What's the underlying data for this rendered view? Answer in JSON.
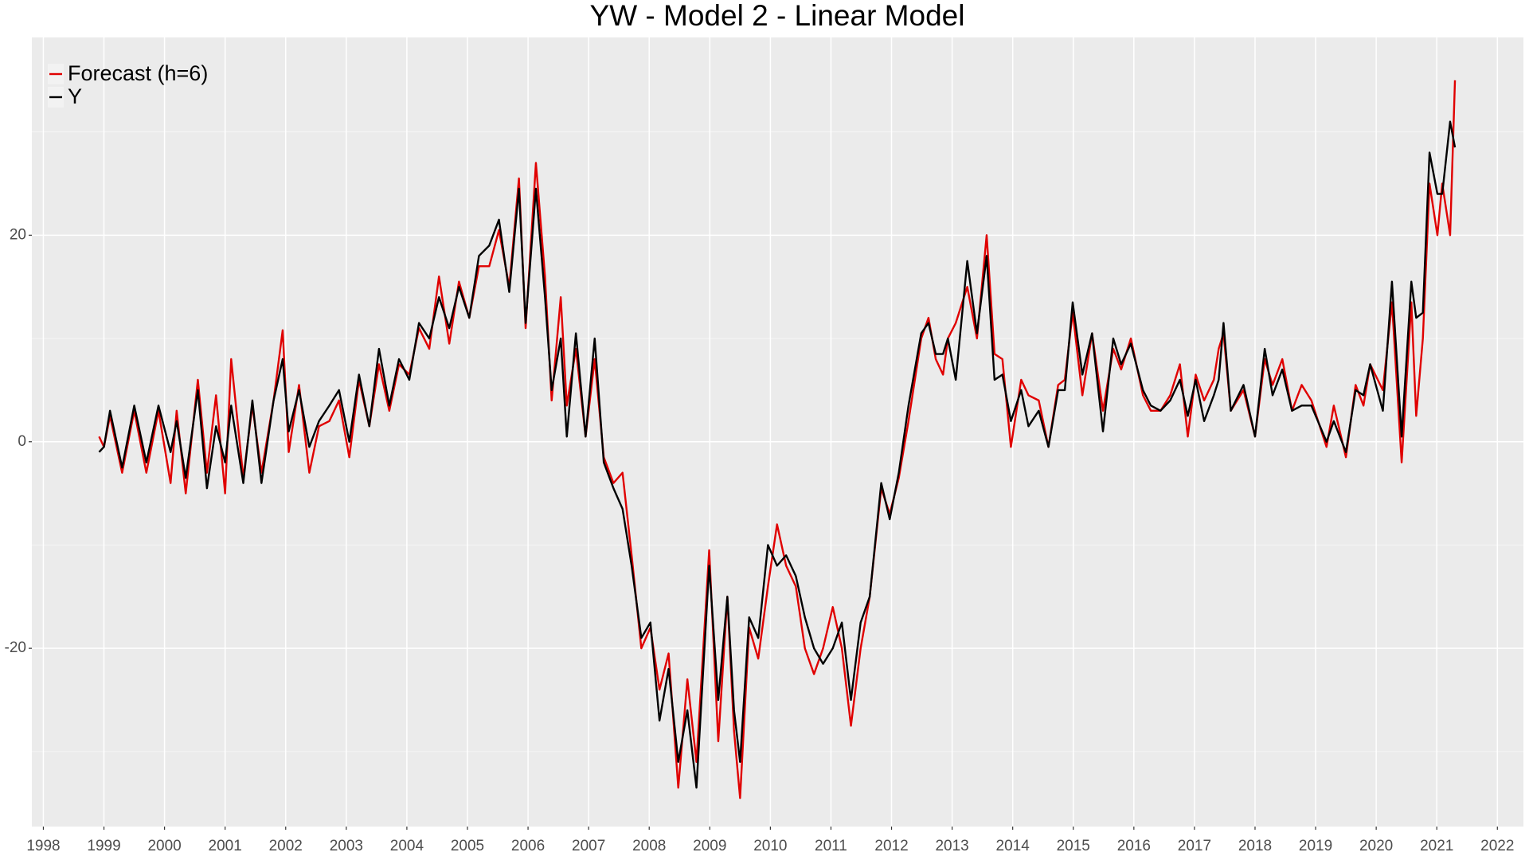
{
  "chart_data": {
    "type": "line",
    "title": "YW - Model 2 - Linear Model",
    "grid": true,
    "legend_position": "top-left",
    "xlim": [
      1997.81,
      2022.43
    ],
    "xticks": [
      1998,
      1999,
      2000,
      2001,
      2002,
      2003,
      2004,
      2005,
      2006,
      2007,
      2008,
      2009,
      2010,
      2011,
      2012,
      2013,
      2014,
      2015,
      2016,
      2017,
      2018,
      2019,
      2020,
      2021,
      2022
    ],
    "ylim": [
      -37.26,
      39.15
    ],
    "yticks": [
      -20,
      0,
      20
    ],
    "yminor": [
      -30,
      -10,
      10,
      30
    ],
    "x": [
      1998.92,
      1999.0,
      1999.1,
      1999.3,
      1999.5,
      1999.7,
      1999.9,
      2000.1,
      2000.2,
      2000.35,
      2000.55,
      2000.7,
      2000.85,
      2001.0,
      2001.1,
      2001.3,
      2001.45,
      2001.6,
      2001.8,
      2001.95,
      2002.05,
      2002.22,
      2002.39,
      2002.55,
      2002.72,
      2002.88,
      2003.05,
      2003.21,
      2003.38,
      2003.54,
      2003.71,
      2003.87,
      2004.04,
      2004.2,
      2004.37,
      2004.53,
      2004.7,
      2004.86,
      2005.03,
      2005.19,
      2005.36,
      2005.52,
      2005.69,
      2005.85,
      2005.96,
      2006.13,
      2006.28,
      2006.39,
      2006.54,
      2006.64,
      2006.79,
      2006.95,
      2007.1,
      2007.25,
      2007.41,
      2007.56,
      2007.71,
      2007.87,
      2008.02,
      2008.17,
      2008.32,
      2008.48,
      2008.63,
      2008.78,
      2008.99,
      2009.14,
      2009.29,
      2009.4,
      2009.5,
      2009.65,
      2009.8,
      2009.96,
      2010.11,
      2010.26,
      2010.42,
      2010.57,
      2010.72,
      2010.87,
      2011.03,
      2011.18,
      2011.33,
      2011.49,
      2011.64,
      2011.83,
      2011.97,
      2012.12,
      2012.28,
      2012.49,
      2012.61,
      2012.73,
      2012.85,
      2012.93,
      2013.06,
      2013.25,
      2013.41,
      2013.57,
      2013.7,
      2013.83,
      2013.97,
      2014.14,
      2014.26,
      2014.43,
      2014.59,
      2014.75,
      2014.86,
      2014.99,
      2015.15,
      2015.31,
      2015.49,
      2015.66,
      2015.79,
      2015.95,
      2016.15,
      2016.28,
      2016.44,
      2016.6,
      2016.76,
      2016.89,
      2017.02,
      2017.16,
      2017.32,
      2017.4,
      2017.48,
      2017.6,
      2017.81,
      2018.0,
      2018.16,
      2018.29,
      2018.45,
      2018.61,
      2018.77,
      2018.93,
      2019.18,
      2019.3,
      2019.5,
      2019.66,
      2019.79,
      2019.9,
      2020.11,
      2020.26,
      2020.42,
      2020.58,
      2020.66,
      2020.77,
      2020.88,
      2021.01,
      2021.09,
      2021.22,
      2021.3
    ],
    "series": [
      {
        "name": "Forecast (h=6)",
        "color": "#e00000",
        "values": [
          0.5,
          -0.5,
          2.5,
          -3,
          3,
          -3,
          3,
          -4,
          3,
          -5,
          6,
          -3,
          4.5,
          -5,
          8,
          -3.5,
          3.5,
          -3,
          4,
          10.8,
          -1,
          5.5,
          -3,
          1.5,
          2,
          4,
          -1.5,
          6,
          1.5,
          7.5,
          3,
          7.5,
          6.5,
          11,
          9,
          16,
          9.5,
          15.5,
          12,
          17,
          17,
          20.5,
          15,
          25.5,
          11,
          27,
          16,
          4,
          14,
          3.5,
          9,
          0.5,
          8,
          -1.5,
          -4,
          -3,
          -11,
          -20,
          -18,
          -24,
          -20.5,
          -33.5,
          -23,
          -31,
          -10.5,
          -29,
          -15,
          -28,
          -34.5,
          -18,
          -21,
          -14,
          -8,
          -12,
          -14,
          -20,
          -22.5,
          -20,
          -16,
          -20,
          -27.5,
          -20,
          -15,
          -4.5,
          -7,
          -3.5,
          2,
          10,
          12,
          8,
          6.5,
          10,
          11.5,
          15,
          10,
          20,
          8.5,
          8,
          -0.5,
          6,
          4.5,
          4,
          -0.5,
          5.5,
          6,
          12.5,
          4.5,
          10.5,
          3,
          9,
          7,
          10,
          4.5,
          3,
          3,
          4.5,
          7.5,
          0.5,
          6.5,
          4,
          6,
          9,
          10.5,
          3,
          5,
          0.5,
          8,
          5.5,
          8,
          3,
          5.5,
          4,
          -0.5,
          3.5,
          -1.5,
          5.5,
          3.5,
          7.5,
          5,
          13.5,
          -2,
          13.5,
          2.5,
          10,
          25,
          20,
          25,
          20,
          35
        ]
      },
      {
        "name": "Y",
        "color": "#000000",
        "values": [
          -1,
          -0.5,
          3,
          -2.5,
          3.5,
          -2,
          3.5,
          -1,
          2,
          -3.5,
          5,
          -4.5,
          1.5,
          -2,
          3.5,
          -4,
          4,
          -4,
          4,
          8,
          1,
          5,
          -0.5,
          2,
          3.5,
          5,
          0,
          6.5,
          1.5,
          9,
          3.5,
          8,
          6,
          11.5,
          10,
          14,
          11,
          15,
          12,
          18,
          19,
          21.5,
          14.5,
          24.5,
          11.5,
          24.5,
          14,
          5,
          10,
          0.5,
          10.5,
          0.5,
          10,
          -2,
          -4.5,
          -6.5,
          -12,
          -19,
          -17.5,
          -27,
          -22,
          -31,
          -26,
          -33.5,
          -12,
          -25,
          -15,
          -26,
          -31,
          -17,
          -19,
          -10,
          -12,
          -11,
          -13,
          -17,
          -20,
          -21.5,
          -20,
          -17.5,
          -25,
          -17.5,
          -15,
          -4,
          -7.5,
          -3,
          3.5,
          10.5,
          11.5,
          8.5,
          8.5,
          10,
          6,
          17.5,
          10.5,
          18,
          6,
          6.5,
          2,
          5,
          1.5,
          3,
          -0.5,
          5,
          5,
          13.5,
          6.5,
          10.5,
          1,
          10,
          7.5,
          9.5,
          5,
          3.5,
          3,
          4,
          6,
          2.5,
          6,
          2,
          4.5,
          6,
          11.5,
          3,
          5.5,
          0.5,
          9,
          4.5,
          7,
          3,
          3.5,
          3.5,
          0,
          2,
          -1,
          5,
          4.5,
          7.5,
          3,
          15.5,
          0.5,
          15.5,
          12,
          12.5,
          28,
          24,
          24,
          31,
          28.5
        ]
      }
    ]
  }
}
